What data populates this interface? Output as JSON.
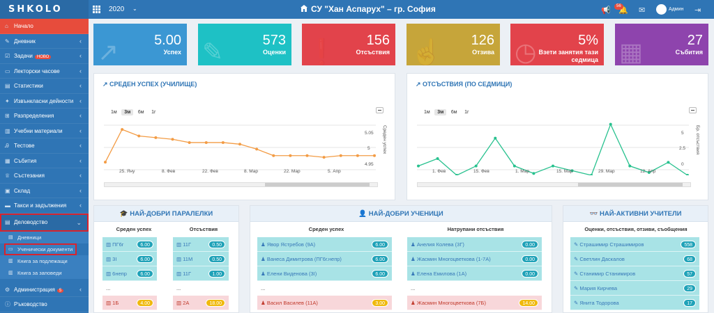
{
  "app": {
    "logo": "SHKOLO",
    "year": "2020",
    "school": "СУ \"Хан Аспарух\" – гр. София",
    "notif_count": "56",
    "user": "Админ"
  },
  "sidebar": {
    "items": [
      {
        "label": "Начало",
        "icon": "home-icon",
        "active": true
      },
      {
        "label": "Дневник",
        "icon": "edit-icon"
      },
      {
        "label": "Задачи",
        "icon": "tasks-icon",
        "badge": "НОВО"
      },
      {
        "label": "Лекторски часове",
        "icon": "monitor-icon"
      },
      {
        "label": "Статистики",
        "icon": "chart-icon"
      },
      {
        "label": "Извънкласни дейности",
        "icon": "activity-icon"
      },
      {
        "label": "Разпределения",
        "icon": "sitemap-icon"
      },
      {
        "label": "Учебни материали",
        "icon": "book-icon"
      },
      {
        "label": "Тестове",
        "icon": "tests-icon"
      },
      {
        "label": "Събития",
        "icon": "calendar-icon"
      },
      {
        "label": "Състезания",
        "icon": "trophy-icon"
      },
      {
        "label": "Склад",
        "icon": "warehouse-icon"
      },
      {
        "label": "Такси и задължения",
        "icon": "money-icon"
      },
      {
        "label": "Деловодство",
        "icon": "archive-icon",
        "open": true
      }
    ],
    "sub_items": [
      {
        "label": "Дневници"
      },
      {
        "label": "Ученически документи",
        "highlight": true
      },
      {
        "label": "Книга за подлежащи"
      },
      {
        "label": "Книга за заповеди"
      }
    ],
    "bottom_items": [
      {
        "label": "Администрация",
        "badge": "5"
      },
      {
        "label": "Ръководство"
      }
    ]
  },
  "cards": [
    {
      "value": "5.00",
      "label": "Успех",
      "color": "#3b97d3"
    },
    {
      "value": "573",
      "label": "Оценки",
      "color": "#1ec1c5"
    },
    {
      "value": "156",
      "label": "Отсъствия",
      "color": "#e2434b"
    },
    {
      "value": "126",
      "label": "Отзива",
      "color": "#c6a53a"
    },
    {
      "value": "5%",
      "label": "Взети занятия тази седмица",
      "color": "#e2434b"
    },
    {
      "value": "27",
      "label": "Събития",
      "color": "#8e44ad"
    }
  ],
  "chart_data": [
    {
      "type": "line",
      "title": "СРЕДЕН УСПЕХ (УЧИЛИЩЕ)",
      "zoom_buttons": [
        "1м",
        "3м",
        "6м",
        "1г"
      ],
      "selected_zoom": "3м",
      "x_ticks": [
        "25. Яну",
        "8. Фев",
        "22. Фев",
        "8. Мар",
        "22. Мар",
        "5. Апр"
      ],
      "y_ticks": [
        "5.05",
        "5",
        "4.95"
      ],
      "ylabel": "Среден успех",
      "series": [
        {
          "values": [
            4.98,
            5.08,
            5.06,
            5.055,
            5.05,
            5.04,
            5.04,
            5.04,
            5.035,
            5.02,
            5.0,
            5.0,
            5.0,
            4.995,
            5.0,
            5.0,
            5.0
          ],
          "color": "#f39c45"
        }
      ],
      "ylim": [
        4.94,
        5.11
      ]
    },
    {
      "type": "line",
      "title": "ОТСЪСТВИЯ (ПО СЕДМИЦИ)",
      "zoom_buttons": [
        "1м",
        "3м",
        "6м",
        "1г"
      ],
      "selected_zoom": "3м",
      "x_ticks": [
        "1. Фев",
        "15. Фев",
        "1. Мар",
        "15. Мар",
        "29. Мар",
        "12. Апр"
      ],
      "y_ticks": [
        "5",
        "2.5",
        "0"
      ],
      "ylabel": "Бр. отсъствия",
      "series": [
        {
          "values": [
            1,
            1.8,
            0,
            1,
            4,
            1,
            0.2,
            1,
            0.5,
            0,
            5.5,
            1,
            0.3,
            1.4,
            0
          ],
          "color": "#27c18e"
        }
      ],
      "ylim": [
        0,
        6
      ]
    }
  ],
  "sections": {
    "classes": {
      "title": "НАЙ-ДОБРИ ПАРАЛЕЛКИ",
      "col1": "Среден успех",
      "col2": "Отсъствия",
      "list1": [
        {
          "name": "ПГ6г",
          "value": "6.00",
          "kind": "c"
        },
        {
          "name": "3I",
          "value": "6.00",
          "kind": "c"
        },
        {
          "name": "6непр",
          "value": "6.00",
          "kind": "c"
        },
        {
          "name": "...",
          "value": "",
          "kind": "w"
        },
        {
          "name": "1Б",
          "value": "4.00",
          "kind": "p"
        }
      ],
      "list2": [
        {
          "name": "11Г",
          "value": "0.50",
          "kind": "c"
        },
        {
          "name": "11М",
          "value": "0.50",
          "kind": "c"
        },
        {
          "name": "11Г",
          "value": "1.00",
          "kind": "c"
        },
        {
          "name": "...",
          "value": "",
          "kind": "w"
        },
        {
          "name": "2А",
          "value": "18.00",
          "kind": "p"
        }
      ]
    },
    "students": {
      "title": "НАЙ-ДОБРИ УЧЕНИЦИ",
      "col1": "Среден успех",
      "col2": "Натрупани отсъствия",
      "list1": [
        {
          "name": "Явор Ястребов (9А)",
          "value": "6.00",
          "kind": "c"
        },
        {
          "name": "Ванеса Димитрова (ПГ6г.непр)",
          "value": "6.00",
          "kind": "c"
        },
        {
          "name": "Елени Виденова (3I)",
          "value": "6.00",
          "kind": "c"
        },
        {
          "name": "...",
          "value": "",
          "kind": "w"
        },
        {
          "name": "Васил Василев (11А)",
          "value": "3.00",
          "kind": "p"
        }
      ],
      "list2": [
        {
          "name": "Анелия Колева (3Г)",
          "value": "0.00",
          "kind": "c"
        },
        {
          "name": "Жасмин Многоцветкова (1-7А)",
          "value": "0.00",
          "kind": "c"
        },
        {
          "name": "Елена Емилова (1А)",
          "value": "0.00",
          "kind": "c"
        },
        {
          "name": "...",
          "value": "",
          "kind": "w"
        },
        {
          "name": "Жасмин Многоцветкова (7Б)",
          "value": "14.00",
          "kind": "p"
        }
      ]
    },
    "teachers": {
      "title": "НАЙ-АКТИВНИ УЧИТЕЛИ",
      "col1": "Оценки, отсъствия, отзиви, съобщения",
      "list1": [
        {
          "name": "Страшимир Страшимиров",
          "value": "558",
          "kind": "c"
        },
        {
          "name": "Светлин Даскалов",
          "value": "68",
          "kind": "c"
        },
        {
          "name": "Станимир Станимиров",
          "value": "57",
          "kind": "c"
        },
        {
          "name": "Мария Кирчева",
          "value": "29",
          "kind": "c"
        },
        {
          "name": "Янита Тодорова",
          "value": "17",
          "kind": "c"
        }
      ]
    }
  }
}
